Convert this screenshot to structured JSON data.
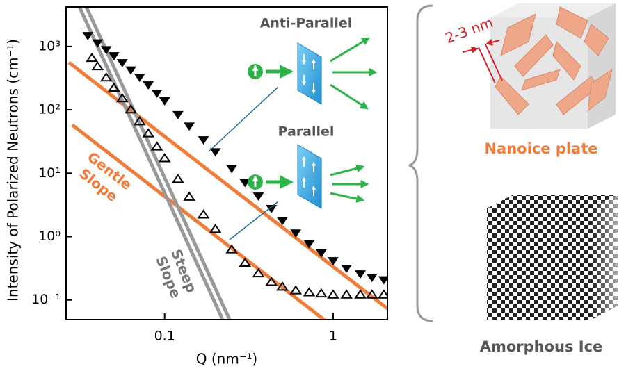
{
  "chart_data": {
    "type": "scatter",
    "xlabel": "Q (nm⁻¹)",
    "ylabel": "Intensity of Polarized Neutrons (cm⁻¹)",
    "xscale": "log",
    "yscale": "log",
    "xlim": [
      0.026,
      2.1
    ],
    "ylim": [
      0.049,
      4200
    ],
    "xticks": [
      0.1,
      1
    ],
    "yticks": [
      {
        "value": 0.1,
        "label": "10⁻¹"
      },
      {
        "value": 1,
        "label": "10⁰"
      },
      {
        "value": 10,
        "label": "10¹"
      },
      {
        "value": 100,
        "label": "10²"
      },
      {
        "value": 1000,
        "label": "10³"
      }
    ],
    "series": [
      {
        "name": "Anti-Parallel",
        "marker": "down-filled",
        "color": "#000000",
        "x": [
          0.035,
          0.04,
          0.045,
          0.05,
          0.056,
          0.063,
          0.071,
          0.08,
          0.09,
          0.1,
          0.12,
          0.14,
          0.17,
          0.2,
          0.25,
          0.3,
          0.36,
          0.43,
          0.5,
          0.6,
          0.72,
          0.85,
          1.0,
          1.2,
          1.45,
          1.7,
          2.0
        ],
        "values": [
          1500,
          1150,
          900,
          720,
          560,
          430,
          330,
          250,
          185,
          140,
          85,
          56,
          34,
          22,
          12,
          7.2,
          4.4,
          2.8,
          1.8,
          1.15,
          0.78,
          0.56,
          0.42,
          0.32,
          0.26,
          0.23,
          0.21
        ]
      },
      {
        "name": "Parallel",
        "marker": "up-open",
        "color": "#000000",
        "x": [
          0.037,
          0.04,
          0.045,
          0.05,
          0.056,
          0.063,
          0.071,
          0.08,
          0.09,
          0.1,
          0.12,
          0.14,
          0.17,
          0.2,
          0.25,
          0.3,
          0.36,
          0.43,
          0.5,
          0.6,
          0.72,
          0.85,
          1.0,
          1.2,
          1.45,
          1.7,
          2.0
        ],
        "values": [
          650,
          480,
          320,
          220,
          150,
          100,
          65,
          42,
          26,
          17,
          8,
          4.2,
          2.2,
          1.3,
          0.62,
          0.38,
          0.26,
          0.19,
          0.16,
          0.14,
          0.13,
          0.125,
          0.12,
          0.12,
          0.12,
          0.12,
          0.12
        ]
      }
    ],
    "fits": [
      {
        "color": "#f07c3a",
        "x": [
          0.027,
          2.1
        ],
        "values": [
          560,
          0.073
        ]
      },
      {
        "color": "#f07c3a",
        "x": [
          0.0283,
          0.93
        ],
        "values": [
          57.7,
          0.044
        ]
      },
      {
        "color": "#999999",
        "x": [
          0.0312,
          0.221
        ],
        "values": [
          4200,
          0.049
        ]
      },
      {
        "color": "#999999",
        "x": [
          0.0343,
          0.243
        ],
        "values": [
          4200,
          0.049
        ]
      }
    ],
    "annotations": {
      "anti_parallel": "Anti-Parallel",
      "parallel": "Parallel",
      "gentle": [
        "Gentle",
        "Slope"
      ],
      "steep": [
        "Steep",
        "Slope"
      ]
    },
    "illustration": {
      "thickness": "2-3 nm",
      "nanoice": "Nanoice plate",
      "amorphous": "Amorphous Ice"
    }
  }
}
